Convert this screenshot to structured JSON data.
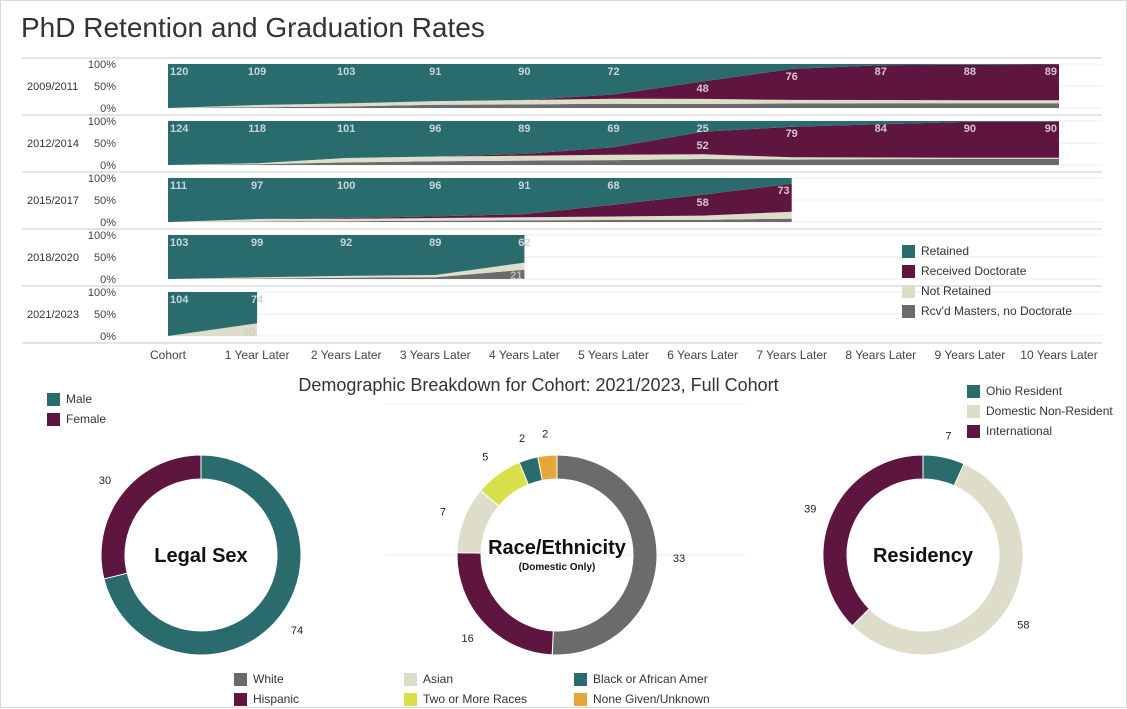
{
  "title": "PhD Retention and Graduation Rates",
  "colors": {
    "retained": "#2a6b6e",
    "doctorate": "#5e1640",
    "not_retained": "#deddc9",
    "masters": "#6b6b6b",
    "white": "#6b6b6b",
    "hispanic": "#5e1640",
    "asian": "#deddc9",
    "two_or_more": "#d7e04a",
    "black": "#2a6b6e",
    "none_given": "#e3a73a",
    "ohio": "#2a6b6e",
    "domestic_nonres": "#deddc9",
    "international": "#5e1640"
  },
  "area_legend": [
    "Retained",
    "Received Doctorate",
    "Not Retained",
    "Rcv'd Masters, no Doctorate"
  ],
  "demo_title": "Demographic Breakdown for Cohort: 2021/2023, Full Cohort",
  "chart_data": [
    {
      "type": "area",
      "stacked": true,
      "percent_axis": true,
      "x": [
        "Cohort",
        "1 Year Later",
        "2 Years Later",
        "3 Years Later",
        "4 Years Later",
        "5 Years Later",
        "6 Years Later",
        "7 Years Later",
        "8 Years Later",
        "9 Years Later",
        "10 Years Later"
      ],
      "y_ticks": [
        "100%",
        "50%",
        "0%"
      ],
      "ylim": [
        0,
        100
      ],
      "rows": [
        {
          "cohort": "2009/2011",
          "masters": [
            0,
            2,
            4,
            8,
            9,
            10,
            11,
            11,
            12,
            12,
            12
          ],
          "not_retained": [
            0,
            6,
            8,
            9,
            11,
            12,
            14,
            9,
            8,
            7,
            7
          ],
          "doctorate": [
            0,
            0,
            0,
            0,
            0,
            10,
            48,
            76,
            87,
            88,
            89
          ],
          "retained": [
            120,
            109,
            103,
            91,
            90,
            72,
            48,
            12,
            3,
            2,
            1
          ],
          "labels": {
            "retained": [
              120,
              109,
              103,
              91,
              90,
              72
            ],
            "doctorate": [
              48,
              76,
              87,
              88,
              89
            ]
          }
        },
        {
          "cohort": "2012/2014",
          "masters": [
            0,
            2,
            7,
            10,
            12,
            13,
            14,
            14,
            15,
            15,
            15
          ],
          "not_retained": [
            0,
            3,
            12,
            13,
            13,
            14,
            11,
            6,
            4,
            3,
            3
          ],
          "doctorate": [
            0,
            0,
            0,
            0,
            5,
            20,
            52,
            79,
            84,
            90,
            90
          ],
          "retained": [
            124,
            118,
            101,
            96,
            89,
            69,
            25,
            15,
            8,
            2,
            2
          ],
          "labels": {
            "retained": [
              124,
              118,
              101,
              96,
              89,
              69,
              25
            ],
            "doctorate": [
              52,
              79,
              84,
              90,
              90
            ]
          }
        },
        {
          "cohort": "2015/2017",
          "masters": [
            0,
            1,
            2,
            3,
            4,
            5,
            6,
            9
          ],
          "not_retained": [
            0,
            6,
            6,
            7,
            8,
            9,
            12,
            18
          ],
          "doctorate": [
            0,
            0,
            2,
            4,
            8,
            30,
            58,
            73
          ],
          "retained": [
            111,
            97,
            100,
            96,
            91,
            68,
            47,
            15
          ],
          "labels": {
            "retained": [
              111,
              97,
              100,
              96,
              91,
              68
            ],
            "doctorate": [
              58,
              73
            ]
          }
        },
        {
          "cohort": "2018/2020",
          "masters": [
            0,
            1,
            3,
            4,
            21
          ],
          "not_retained": [
            0,
            3,
            4,
            5,
            16
          ],
          "doctorate": [
            0,
            0,
            0,
            0,
            0
          ],
          "retained": [
            103,
            99,
            92,
            89,
            62
          ],
          "labels": {
            "retained": [
              103,
              99,
              92,
              89,
              62
            ],
            "masters": [
              21
            ]
          }
        },
        {
          "cohort": "2021/2023",
          "masters": [
            0,
            0
          ],
          "not_retained": [
            0,
            30
          ],
          "doctorate": [
            0,
            0
          ],
          "retained": [
            104,
            74
          ],
          "labels": {
            "retained": [
              104,
              74
            ],
            "not_retained": [
              30
            ]
          }
        }
      ]
    },
    {
      "type": "pie",
      "donut": true,
      "title": "Legal Sex",
      "legend": [
        "Male",
        "Female"
      ],
      "slices": [
        {
          "label": "Male",
          "value": 74,
          "color_key": "retained"
        },
        {
          "label": "Female",
          "value": 30,
          "color_key": "doctorate"
        }
      ]
    },
    {
      "type": "pie",
      "donut": true,
      "title": "Race/Ethnicity",
      "subtitle": "(Domestic Only)",
      "legend": [
        "White",
        "Hispanic",
        "Asian",
        "Two or More Races",
        "Black or African Amer",
        "None Given/Unknown"
      ],
      "slices": [
        {
          "label": "White",
          "value": 33,
          "color_key": "white"
        },
        {
          "label": "Hispanic",
          "value": 16,
          "color_key": "hispanic"
        },
        {
          "label": "Asian",
          "value": 7,
          "color_key": "asian"
        },
        {
          "label": "Two or More Races",
          "value": 5,
          "color_key": "two_or_more"
        },
        {
          "label": "Black or African Amer",
          "value": 2,
          "color_key": "black"
        },
        {
          "label": "None Given/Unknown",
          "value": 2,
          "color_key": "none_given"
        }
      ]
    },
    {
      "type": "pie",
      "donut": true,
      "title": "Residency",
      "legend": [
        "Ohio Resident",
        "Domestic Non-Resident",
        "International"
      ],
      "slices": [
        {
          "label": "Ohio Resident",
          "value": 7,
          "color_key": "ohio"
        },
        {
          "label": "Domestic Non-Resident",
          "value": 58,
          "color_key": "domestic_nonres"
        },
        {
          "label": "International",
          "value": 39,
          "color_key": "international"
        }
      ]
    }
  ]
}
